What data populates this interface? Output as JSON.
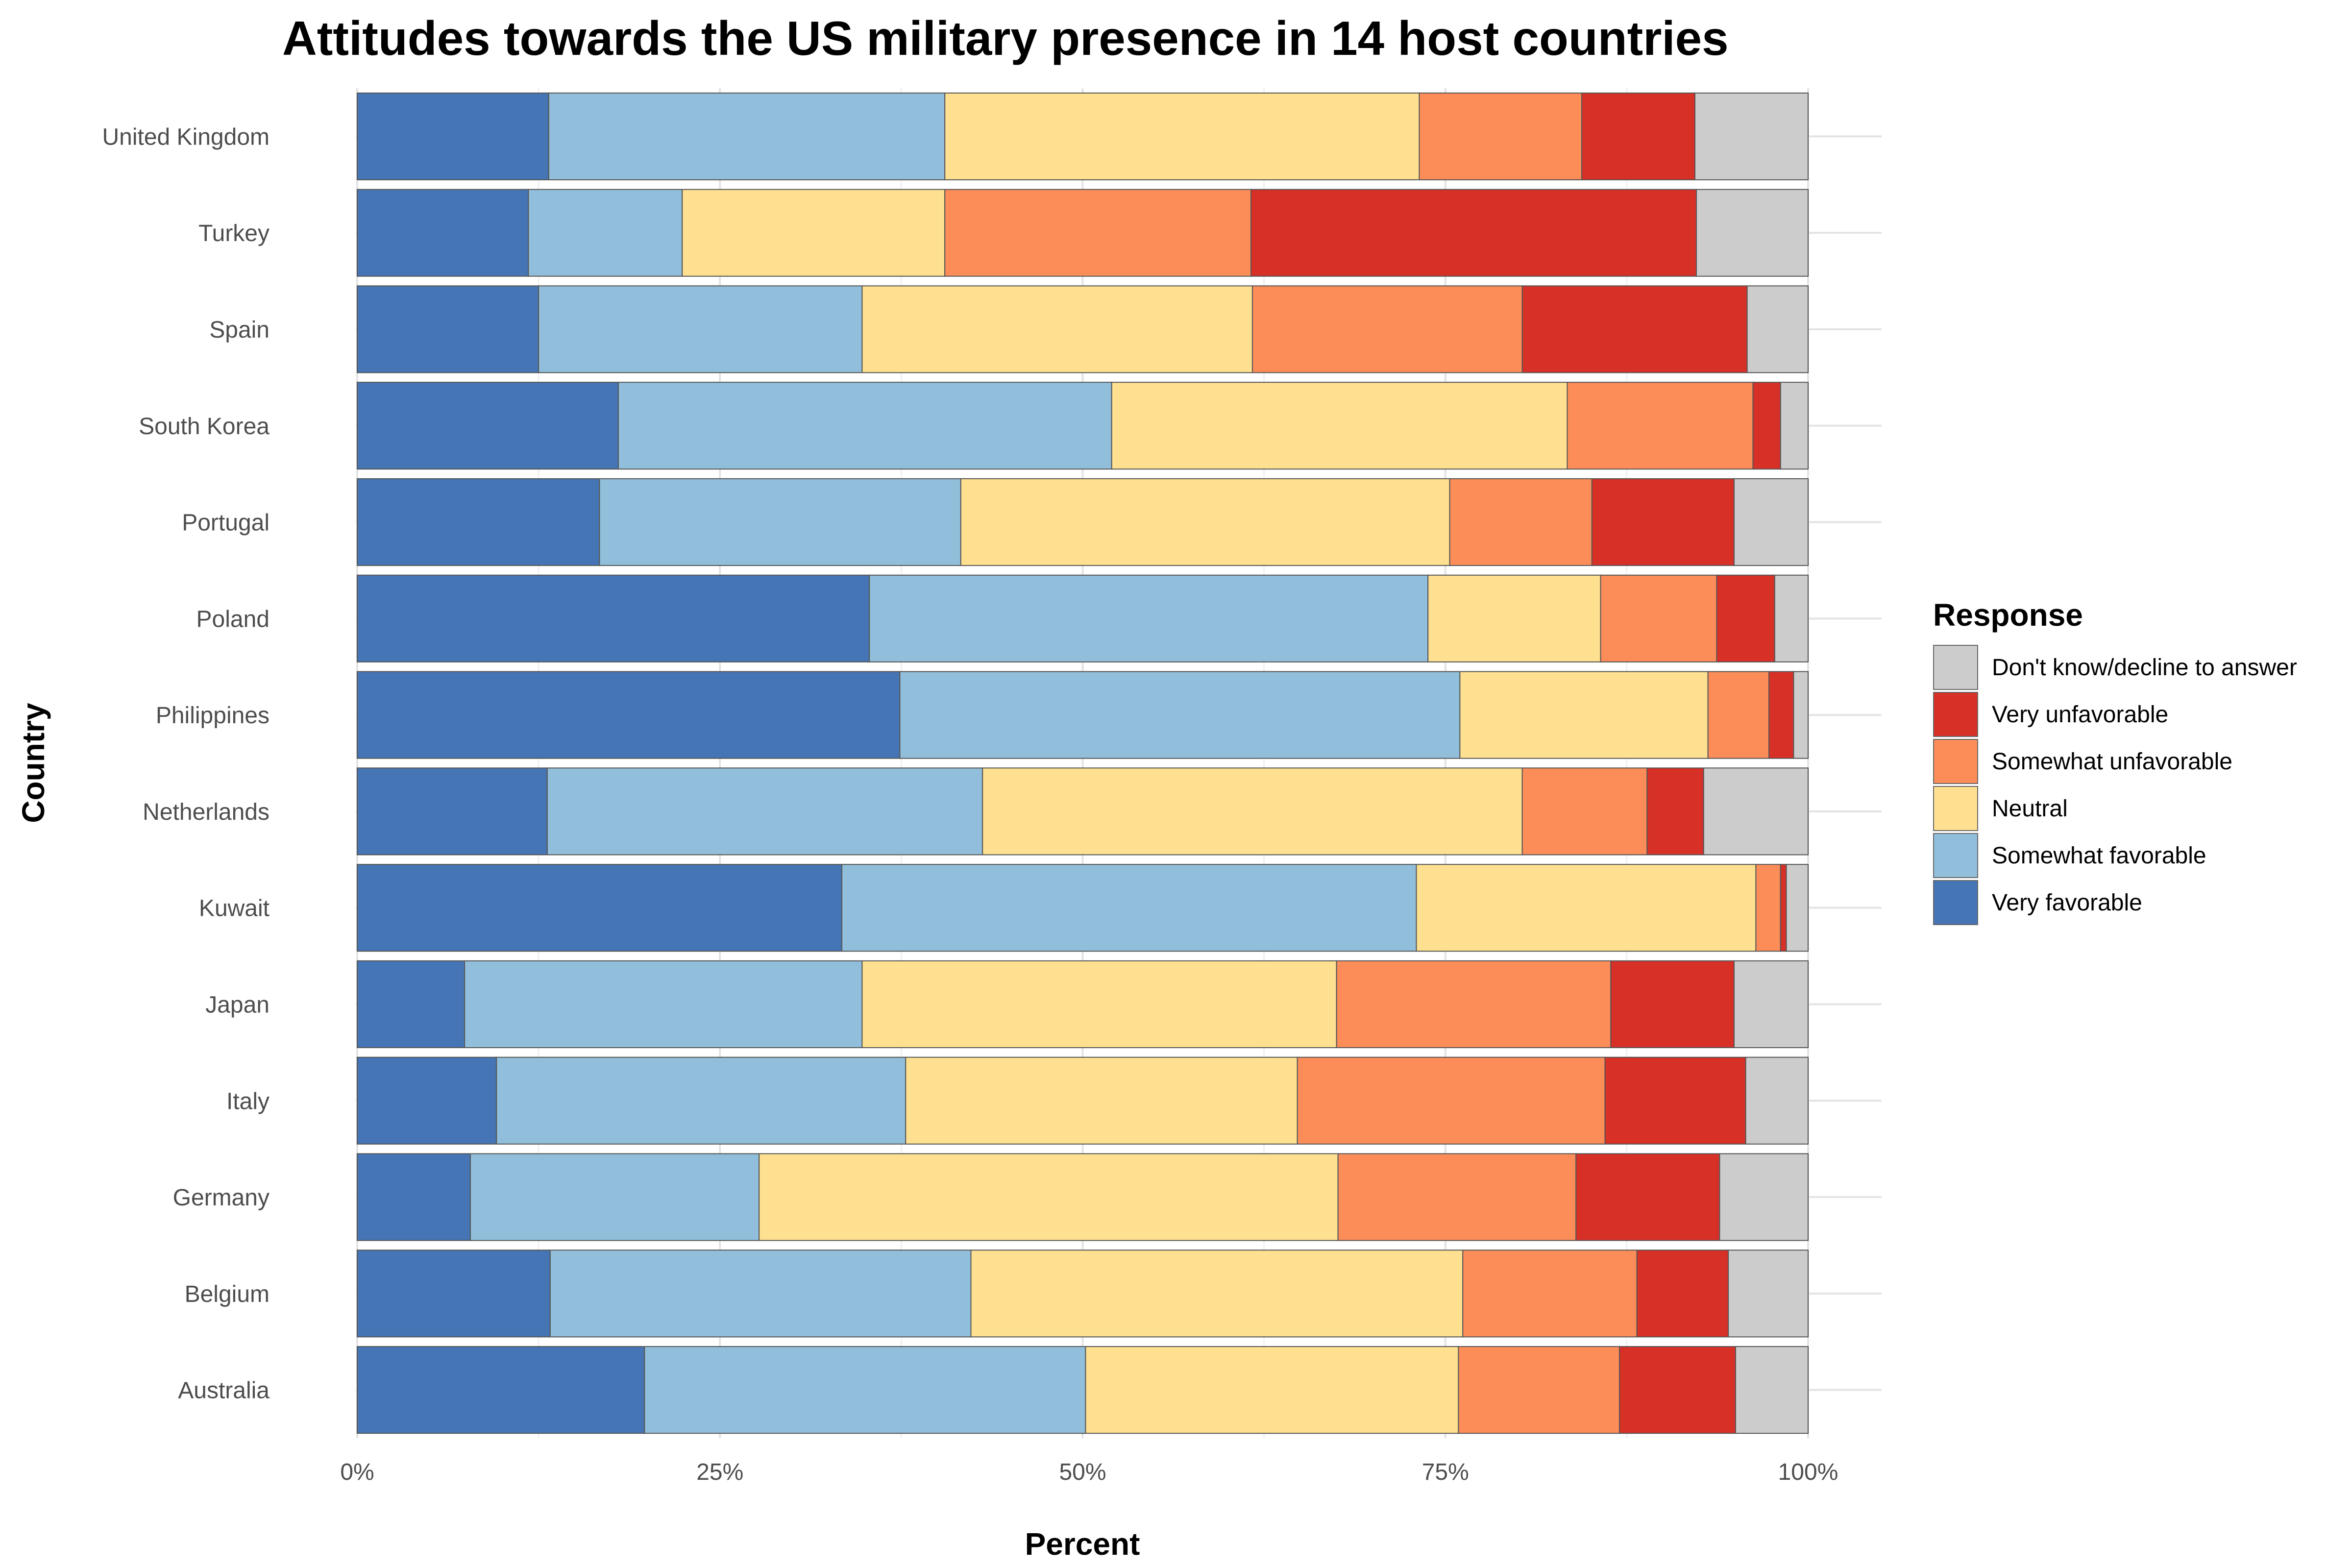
{
  "chart_data": {
    "type": "bar",
    "orientation": "horizontal",
    "stacked": true,
    "normalized": true,
    "title": "Attitudes towards the US military presence in 14 host countries",
    "xlabel": "Percent",
    "ylabel": "Country",
    "xlim": [
      0,
      100
    ],
    "xticks": [
      "0%",
      "25%",
      "50%",
      "75%",
      "100%"
    ],
    "xtick_values": [
      0,
      25,
      50,
      75,
      100
    ],
    "grid": true,
    "legend_title": "Response",
    "legend_position": "right",
    "categories": [
      "United Kingdom",
      "Turkey",
      "Spain",
      "South Korea",
      "Portugal",
      "Poland",
      "Philippines",
      "Netherlands",
      "Kuwait",
      "Japan",
      "Italy",
      "Germany",
      "Belgium",
      "Australia"
    ],
    "series": [
      {
        "name": "Very favorable",
        "color": "#4575b4",
        "values": [
          13.2,
          11.8,
          12.5,
          18.0,
          16.7,
          35.3,
          37.4,
          13.1,
          33.4,
          7.4,
          9.6,
          7.8,
          13.3,
          19.8
        ]
      },
      {
        "name": "Somewhat favorable",
        "color": "#91bfdb",
        "values": [
          27.3,
          10.6,
          22.3,
          34.0,
          24.9,
          38.5,
          38.6,
          30.0,
          39.6,
          27.4,
          28.2,
          19.9,
          29.0,
          30.4
        ]
      },
      {
        "name": "Neutral",
        "color": "#fee090",
        "values": [
          32.7,
          18.1,
          26.9,
          31.4,
          33.7,
          11.9,
          17.1,
          37.2,
          23.4,
          32.7,
          27.0,
          39.9,
          33.9,
          25.7
        ]
      },
      {
        "name": "Somewhat unfavorable",
        "color": "#fc8d59",
        "values": [
          11.2,
          21.1,
          18.6,
          12.8,
          9.8,
          8.0,
          4.2,
          8.6,
          1.7,
          18.9,
          21.2,
          16.4,
          12.0,
          11.1
        ]
      },
      {
        "name": "Very unfavorable",
        "color": "#d73027",
        "values": [
          7.8,
          30.7,
          15.5,
          1.9,
          9.8,
          4.0,
          1.7,
          3.9,
          0.4,
          8.5,
          9.7,
          9.9,
          6.3,
          8.0
        ]
      },
      {
        "name": "Don't know/decline to answer",
        "color": "#cccccc",
        "values": [
          7.8,
          7.7,
          4.2,
          1.9,
          5.1,
          2.3,
          1.0,
          7.2,
          1.5,
          5.1,
          4.3,
          6.1,
          5.5,
          5.0
        ]
      }
    ]
  }
}
